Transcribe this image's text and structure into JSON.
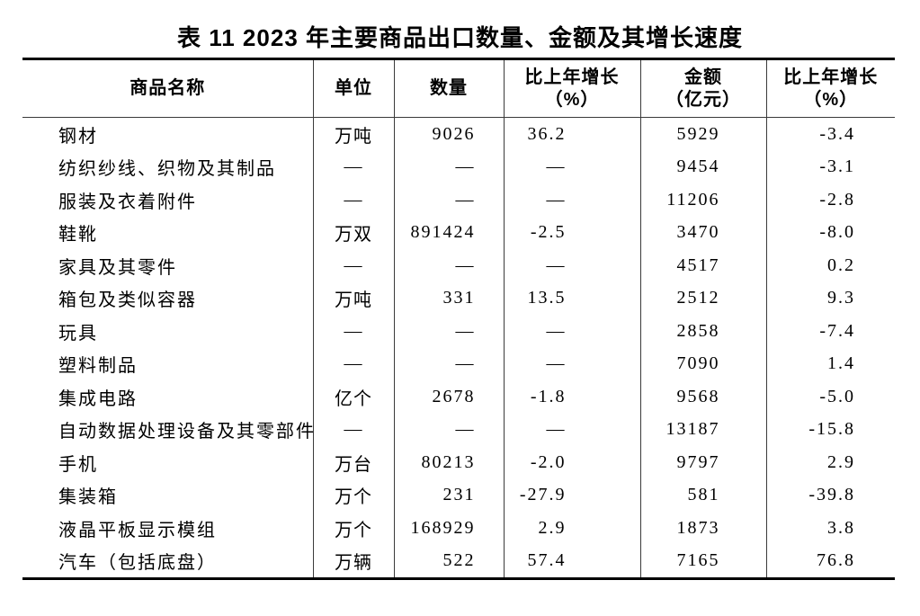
{
  "title": "表 11  2023 年主要商品出口数量、金额及其增长速度",
  "colors": {
    "background": "#ffffff",
    "text": "#000000",
    "border": "#000000"
  },
  "table": {
    "columns": [
      {
        "label": "商品名称",
        "sub": ""
      },
      {
        "label": "单位",
        "sub": ""
      },
      {
        "label": "数量",
        "sub": ""
      },
      {
        "label": "比上年增长",
        "sub": "（%）"
      },
      {
        "label": "金额",
        "sub": "（亿元）"
      },
      {
        "label": "比上年增长",
        "sub": "（%）"
      }
    ],
    "rows": [
      {
        "commodity": "钢材",
        "unit": "万吨",
        "quantity": "9026",
        "quantity_growth": "36.2",
        "amount": "5929",
        "amount_growth": "-3.4"
      },
      {
        "commodity": "纺织纱线、织物及其制品",
        "unit": "—",
        "quantity": "—",
        "quantity_growth": "—",
        "amount": "9454",
        "amount_growth": "-3.1"
      },
      {
        "commodity": "服装及衣着附件",
        "unit": "—",
        "quantity": "—",
        "quantity_growth": "—",
        "amount": "11206",
        "amount_growth": "-2.8"
      },
      {
        "commodity": "鞋靴",
        "unit": "万双",
        "quantity": "891424",
        "quantity_growth": "-2.5",
        "amount": "3470",
        "amount_growth": "-8.0"
      },
      {
        "commodity": "家具及其零件",
        "unit": "—",
        "quantity": "—",
        "quantity_growth": "—",
        "amount": "4517",
        "amount_growth": "0.2"
      },
      {
        "commodity": "箱包及类似容器",
        "unit": "万吨",
        "quantity": "331",
        "quantity_growth": "13.5",
        "amount": "2512",
        "amount_growth": "9.3"
      },
      {
        "commodity": "玩具",
        "unit": "—",
        "quantity": "—",
        "quantity_growth": "—",
        "amount": "2858",
        "amount_growth": "-7.4"
      },
      {
        "commodity": "塑料制品",
        "unit": "—",
        "quantity": "—",
        "quantity_growth": "—",
        "amount": "7090",
        "amount_growth": "1.4"
      },
      {
        "commodity": "集成电路",
        "unit": "亿个",
        "quantity": "2678",
        "quantity_growth": "-1.8",
        "amount": "9568",
        "amount_growth": "-5.0"
      },
      {
        "commodity": "自动数据处理设备及其零部件",
        "unit": "—",
        "quantity": "—",
        "quantity_growth": "—",
        "amount": "13187",
        "amount_growth": "-15.8"
      },
      {
        "commodity": "手机",
        "unit": "万台",
        "quantity": "80213",
        "quantity_growth": "-2.0",
        "amount": "9797",
        "amount_growth": "2.9"
      },
      {
        "commodity": "集装箱",
        "unit": "万个",
        "quantity": "231",
        "quantity_growth": "-27.9",
        "amount": "581",
        "amount_growth": "-39.8"
      },
      {
        "commodity": "液晶平板显示模组",
        "unit": "万个",
        "quantity": "168929",
        "quantity_growth": "2.9",
        "amount": "1873",
        "amount_growth": "3.8"
      },
      {
        "commodity": "汽车（包括底盘）",
        "unit": "万辆",
        "quantity": "522",
        "quantity_growth": "57.4",
        "amount": "7165",
        "amount_growth": "76.8"
      }
    ]
  }
}
